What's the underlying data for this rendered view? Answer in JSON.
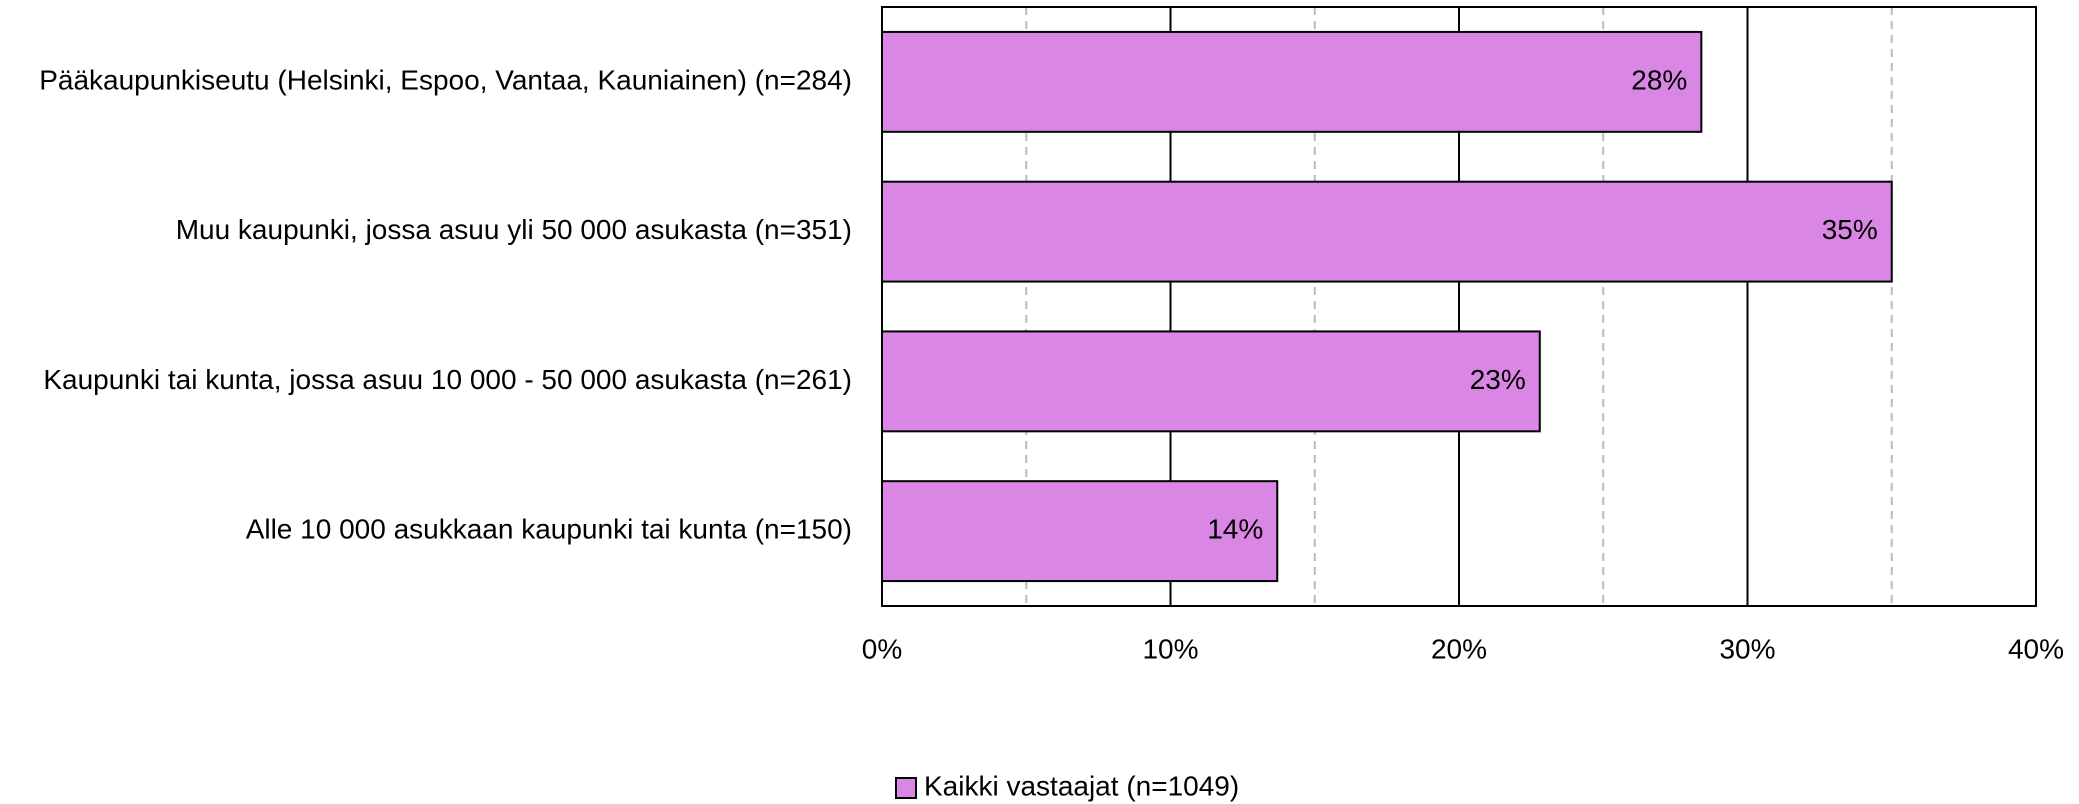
{
  "chart_data": {
    "type": "barh",
    "categories": [
      "Pääkaupunkiseutu (Helsinki, Espoo, Vantaa, Kauniainen) (n=284)",
      "Muu kaupunki, jossa asuu yli 50 000 asukasta (n=351)",
      "Kaupunki tai kunta, jossa asuu 10 000 - 50 000 asukasta (n=261)",
      "Alle 10 000 asukkaan kaupunki tai kunta (n=150)"
    ],
    "series": [
      {
        "name": "Kaikki vastaajat (n=1049)",
        "color": "#da86e4",
        "values": [
          28.4,
          35,
          22.8,
          13.7
        ],
        "value_labels": [
          "28%",
          "35%",
          "23%",
          "14%"
        ]
      }
    ],
    "xlim": [
      0,
      40
    ],
    "xticks": [
      {
        "value": 0,
        "label": "0%"
      },
      {
        "value": 10,
        "label": "10%"
      },
      {
        "value": 20,
        "label": "20%"
      },
      {
        "value": 30,
        "label": "30%"
      },
      {
        "value": 40,
        "label": "40%"
      }
    ],
    "minor_xticks": [
      5,
      15,
      25,
      35
    ],
    "grid": true,
    "legend": "bottom"
  }
}
